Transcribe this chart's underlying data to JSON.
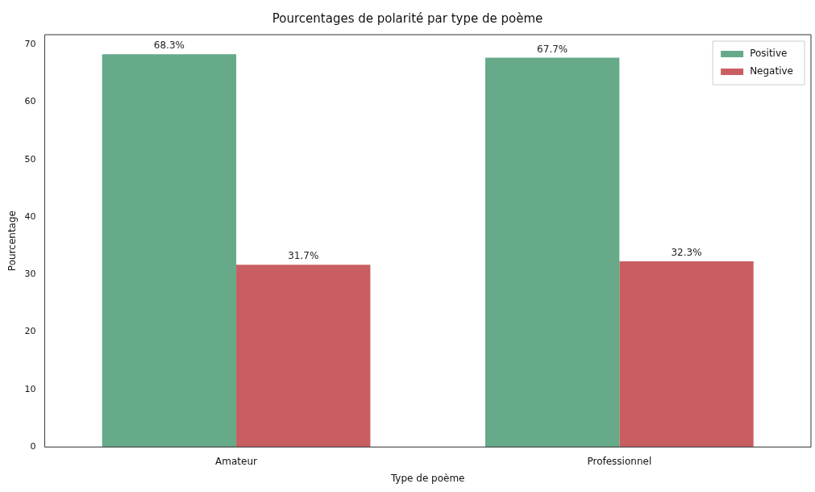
{
  "chart_data": {
    "type": "bar",
    "title": "Pourcentages de polarité par type de poème",
    "xlabel": "Type de poème",
    "ylabel": "Pourcentage",
    "categories": [
      "Amateur",
      "Professionnel"
    ],
    "series": [
      {
        "name": "Positive",
        "color": "#66aa8a",
        "values": [
          68.3,
          67.7
        ],
        "value_labels": [
          "68.3%",
          "67.7%"
        ]
      },
      {
        "name": "Negative",
        "color": "#c85e60",
        "values": [
          31.7,
          32.3
        ],
        "value_labels": [
          "31.7%",
          "32.3%"
        ]
      }
    ],
    "ylim": [
      0,
      71.7
    ],
    "yticks": [
      0,
      10,
      20,
      30,
      40,
      50,
      60,
      70
    ],
    "legend": "top right"
  }
}
